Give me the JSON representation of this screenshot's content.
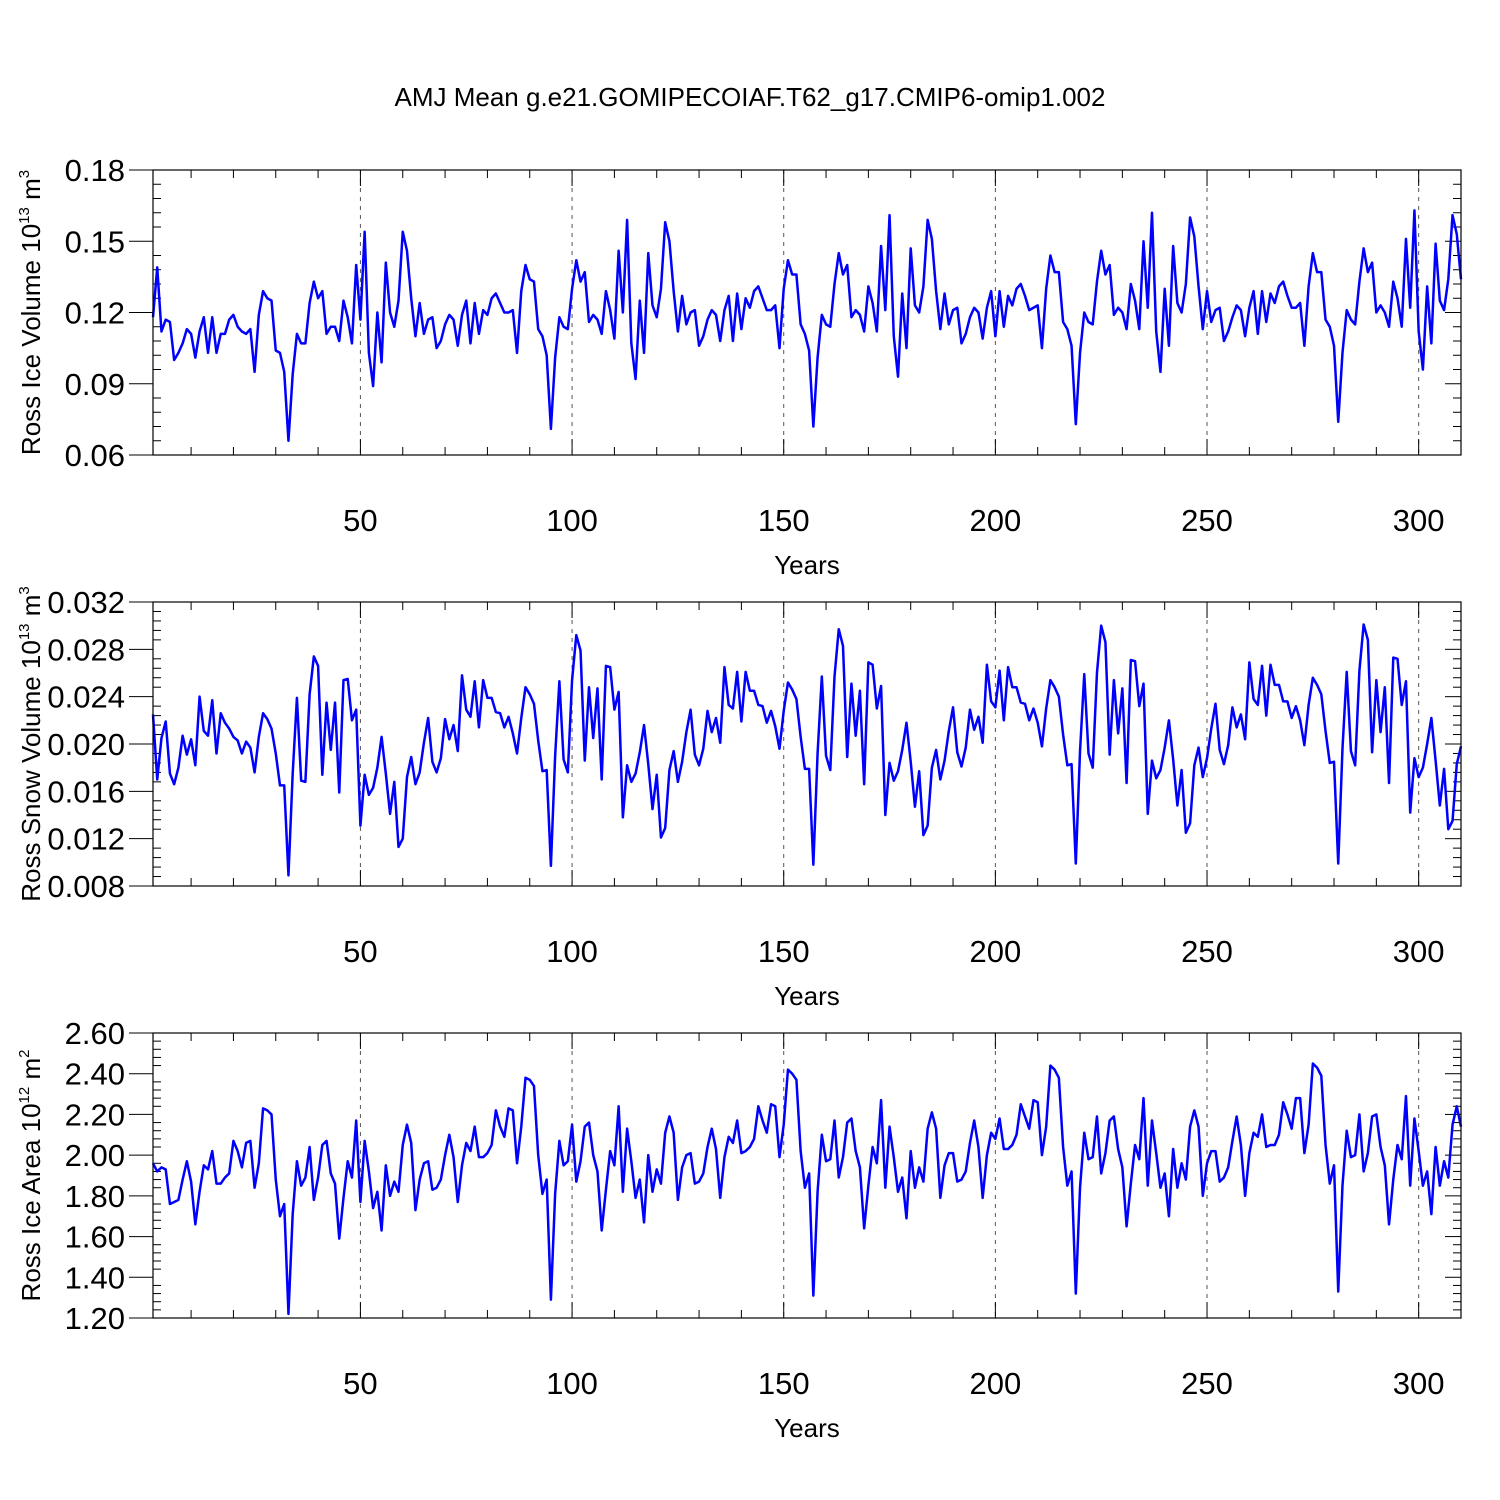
{
  "title": "AMJ Mean g.e21.GOMIPECOIAF.T62_g17.CMIP6-omip1.002",
  "colors": {
    "line": "#0000ff",
    "axis": "#000000",
    "grid": "#555555"
  },
  "chart_data": [
    {
      "type": "line",
      "name": "ross-ice-volume",
      "xlabel": "Years",
      "ylabel": {
        "main": "Ross Ice Volume 10",
        "exp": "13",
        "unit": " m",
        "unit_exp": "3"
      },
      "xlim": [
        1,
        310
      ],
      "ylim": [
        0.06,
        0.18
      ],
      "xticks": [
        50,
        100,
        150,
        200,
        250,
        300
      ],
      "xtick_labels": [
        "50",
        "100",
        "150",
        "200",
        "250",
        "300"
      ],
      "yticks": [
        0.06,
        0.09,
        0.12,
        0.15,
        0.18
      ],
      "ytick_labels": [
        "0.06",
        "0.09",
        "0.12",
        "0.15",
        "0.18"
      ],
      "grid": "vertical dashed at x ticks",
      "x_start": 1,
      "values": [
        0.118,
        0.139,
        0.112,
        0.117,
        0.116,
        0.1,
        0.103,
        0.107,
        0.113,
        0.111,
        0.101,
        0.112,
        0.118,
        0.103,
        0.118,
        0.103,
        0.111,
        0.111,
        0.117,
        0.119,
        0.114,
        0.112,
        0.111,
        0.113,
        0.095,
        0.119,
        0.129,
        0.126,
        0.125,
        0.104,
        0.103,
        0.095,
        0.066,
        0.094,
        0.111,
        0.107,
        0.107,
        0.124,
        0.133,
        0.126,
        0.129,
        0.111,
        0.114,
        0.114,
        0.108,
        0.125,
        0.118,
        0.107,
        0.14,
        0.117,
        0.154,
        0.103,
        0.089,
        0.12,
        0.099,
        0.141,
        0.12,
        0.114,
        0.125,
        0.154,
        0.146,
        0.126,
        0.11,
        0.124,
        0.111,
        0.117,
        0.118,
        0.105,
        0.108,
        0.115,
        0.119,
        0.117,
        0.106,
        0.119,
        0.125,
        0.107,
        0.124,
        0.111,
        0.121,
        0.119,
        0.126,
        0.128,
        0.124,
        0.12,
        0.12,
        0.121,
        0.103,
        0.129,
        0.14,
        0.134,
        0.133,
        0.113,
        0.11,
        0.102,
        0.071,
        0.101,
        0.118,
        0.114,
        0.113,
        0.13,
        0.142,
        0.133,
        0.137,
        0.116,
        0.119,
        0.117,
        0.111,
        0.129,
        0.121,
        0.109,
        0.146,
        0.12,
        0.159,
        0.107,
        0.092,
        0.125,
        0.103,
        0.145,
        0.123,
        0.118,
        0.13,
        0.158,
        0.15,
        0.129,
        0.112,
        0.127,
        0.115,
        0.12,
        0.121,
        0.106,
        0.11,
        0.117,
        0.121,
        0.119,
        0.108,
        0.121,
        0.127,
        0.108,
        0.128,
        0.113,
        0.126,
        0.122,
        0.129,
        0.131,
        0.126,
        0.121,
        0.121,
        0.123,
        0.105,
        0.13,
        0.142,
        0.136,
        0.136,
        0.115,
        0.111,
        0.104,
        0.072,
        0.101,
        0.119,
        0.115,
        0.114,
        0.132,
        0.145,
        0.136,
        0.14,
        0.118,
        0.121,
        0.119,
        0.112,
        0.131,
        0.124,
        0.112,
        0.148,
        0.121,
        0.161,
        0.11,
        0.093,
        0.128,
        0.105,
        0.147,
        0.123,
        0.12,
        0.131,
        0.159,
        0.151,
        0.129,
        0.113,
        0.128,
        0.115,
        0.121,
        0.122,
        0.107,
        0.111,
        0.118,
        0.122,
        0.12,
        0.109,
        0.122,
        0.129,
        0.11,
        0.129,
        0.114,
        0.127,
        0.123,
        0.13,
        0.132,
        0.127,
        0.121,
        0.122,
        0.123,
        0.105,
        0.13,
        0.144,
        0.137,
        0.137,
        0.116,
        0.113,
        0.106,
        0.073,
        0.103,
        0.12,
        0.116,
        0.115,
        0.133,
        0.146,
        0.136,
        0.14,
        0.119,
        0.122,
        0.12,
        0.113,
        0.132,
        0.125,
        0.113,
        0.15,
        0.122,
        0.162,
        0.112,
        0.095,
        0.13,
        0.106,
        0.148,
        0.124,
        0.12,
        0.132,
        0.16,
        0.152,
        0.131,
        0.113,
        0.129,
        0.116,
        0.121,
        0.122,
        0.108,
        0.112,
        0.118,
        0.123,
        0.121,
        0.11,
        0.122,
        0.129,
        0.111,
        0.129,
        0.116,
        0.128,
        0.124,
        0.131,
        0.133,
        0.127,
        0.122,
        0.122,
        0.124,
        0.106,
        0.131,
        0.145,
        0.137,
        0.137,
        0.117,
        0.114,
        0.106,
        0.074,
        0.103,
        0.121,
        0.117,
        0.115,
        0.133,
        0.147,
        0.137,
        0.141,
        0.12,
        0.123,
        0.12,
        0.114,
        0.133,
        0.126,
        0.114,
        0.151,
        0.122,
        0.163,
        0.112,
        0.096,
        0.131,
        0.107,
        0.149,
        0.125,
        0.121,
        0.134,
        0.161,
        0.153,
        0.134
      ]
    },
    {
      "type": "line",
      "name": "ross-snow-volume",
      "xlabel": "Years",
      "ylabel": {
        "main": "Ross Snow Volume 10",
        "exp": "13",
        "unit": " m",
        "unit_exp": "3"
      },
      "xlim": [
        1,
        310
      ],
      "ylim": [
        0.008,
        0.032
      ],
      "xticks": [
        50,
        100,
        150,
        200,
        250,
        300
      ],
      "xtick_labels": [
        "50",
        "100",
        "150",
        "200",
        "250",
        "300"
      ],
      "yticks": [
        0.008,
        0.012,
        0.016,
        0.02,
        0.024,
        0.028,
        0.032
      ],
      "ytick_labels": [
        "0.008",
        "0.012",
        "0.016",
        "0.020",
        "0.024",
        "0.028",
        "0.032"
      ],
      "grid": "vertical dashed at x ticks",
      "x_start": 1,
      "values": [
        0.0225,
        0.017,
        0.0205,
        0.0219,
        0.0175,
        0.0166,
        0.018,
        0.0207,
        0.0191,
        0.0204,
        0.0182,
        0.024,
        0.0211,
        0.0207,
        0.0237,
        0.0192,
        0.0226,
        0.0218,
        0.0213,
        0.0206,
        0.0203,
        0.0192,
        0.0202,
        0.0197,
        0.0176,
        0.0206,
        0.0226,
        0.0221,
        0.0213,
        0.0192,
        0.0165,
        0.0165,
        0.0089,
        0.0175,
        0.0239,
        0.0169,
        0.0168,
        0.0242,
        0.0274,
        0.0266,
        0.0174,
        0.0235,
        0.0195,
        0.0235,
        0.0159,
        0.0254,
        0.0255,
        0.022,
        0.0229,
        0.0131,
        0.0174,
        0.0157,
        0.0163,
        0.018,
        0.0206,
        0.0175,
        0.0141,
        0.0168,
        0.0113,
        0.012,
        0.0172,
        0.0189,
        0.0166,
        0.0176,
        0.0201,
        0.0222,
        0.0185,
        0.0176,
        0.0188,
        0.0221,
        0.0204,
        0.0216,
        0.0194,
        0.0258,
        0.0229,
        0.0223,
        0.0253,
        0.0214,
        0.0254,
        0.0239,
        0.0239,
        0.0227,
        0.0226,
        0.0214,
        0.0223,
        0.0209,
        0.0192,
        0.0222,
        0.0248,
        0.0242,
        0.0234,
        0.0203,
        0.0177,
        0.0178,
        0.0097,
        0.019,
        0.0253,
        0.0187,
        0.0176,
        0.0254,
        0.0292,
        0.0279,
        0.0186,
        0.0248,
        0.0205,
        0.0247,
        0.017,
        0.0266,
        0.0265,
        0.0229,
        0.0244,
        0.0138,
        0.0182,
        0.0168,
        0.0175,
        0.0193,
        0.0216,
        0.0183,
        0.0145,
        0.0174,
        0.0121,
        0.0129,
        0.0178,
        0.0194,
        0.0168,
        0.0185,
        0.021,
        0.0229,
        0.0191,
        0.0182,
        0.0196,
        0.0228,
        0.021,
        0.0222,
        0.0201,
        0.0265,
        0.0233,
        0.023,
        0.0261,
        0.0219,
        0.0261,
        0.0245,
        0.0245,
        0.0233,
        0.0232,
        0.0218,
        0.0228,
        0.0215,
        0.0196,
        0.0228,
        0.0252,
        0.0246,
        0.0238,
        0.0206,
        0.0179,
        0.0179,
        0.0098,
        0.0192,
        0.0257,
        0.019,
        0.0178,
        0.0257,
        0.0297,
        0.0283,
        0.0189,
        0.0251,
        0.0207,
        0.0245,
        0.0166,
        0.0269,
        0.0267,
        0.023,
        0.0249,
        0.014,
        0.0184,
        0.0169,
        0.0177,
        0.0195,
        0.0218,
        0.0185,
        0.0147,
        0.0177,
        0.0123,
        0.0131,
        0.018,
        0.0195,
        0.017,
        0.0186,
        0.0211,
        0.0231,
        0.0193,
        0.0181,
        0.0197,
        0.0229,
        0.0212,
        0.0223,
        0.0201,
        0.0267,
        0.0236,
        0.0231,
        0.0262,
        0.022,
        0.0265,
        0.0248,
        0.0248,
        0.0235,
        0.0234,
        0.022,
        0.023,
        0.0218,
        0.0198,
        0.023,
        0.0254,
        0.0248,
        0.024,
        0.0208,
        0.0182,
        0.0183,
        0.0099,
        0.0194,
        0.0259,
        0.0192,
        0.018,
        0.026,
        0.03,
        0.0286,
        0.0191,
        0.0254,
        0.0209,
        0.0247,
        0.0167,
        0.0271,
        0.027,
        0.0232,
        0.0251,
        0.0141,
        0.0186,
        0.0171,
        0.0178,
        0.0197,
        0.022,
        0.0187,
        0.0148,
        0.0178,
        0.0125,
        0.0133,
        0.0182,
        0.0197,
        0.0172,
        0.0188,
        0.0213,
        0.0234,
        0.0195,
        0.0183,
        0.0199,
        0.0231,
        0.0214,
        0.0225,
        0.0204,
        0.0269,
        0.0238,
        0.0233,
        0.0266,
        0.0224,
        0.0267,
        0.025,
        0.025,
        0.0236,
        0.0236,
        0.0222,
        0.0232,
        0.022,
        0.0199,
        0.0233,
        0.0256,
        0.025,
        0.0242,
        0.0211,
        0.0184,
        0.0185,
        0.0099,
        0.0196,
        0.0261,
        0.0194,
        0.0182,
        0.0262,
        0.0301,
        0.0288,
        0.0193,
        0.0254,
        0.021,
        0.0248,
        0.0167,
        0.0273,
        0.0272,
        0.0233,
        0.0253,
        0.0142,
        0.0188,
        0.0172,
        0.018,
        0.02,
        0.0222,
        0.0186,
        0.0148,
        0.0179,
        0.0128,
        0.0135,
        0.0183,
        0.0198
      ]
    },
    {
      "type": "line",
      "name": "ross-ice-area",
      "xlabel": "Years",
      "ylabel": {
        "main": "Ross Ice Area 10",
        "exp": "12",
        "unit": " m",
        "unit_exp": "2"
      },
      "xlim": [
        1,
        310
      ],
      "ylim": [
        1.2,
        2.6
      ],
      "xticks": [
        50,
        100,
        150,
        200,
        250,
        300
      ],
      "xtick_labels": [
        "50",
        "100",
        "150",
        "200",
        "250",
        "300"
      ],
      "yticks": [
        1.2,
        1.4,
        1.6,
        1.8,
        2.0,
        2.2,
        2.4,
        2.6
      ],
      "ytick_labels": [
        "1.20",
        "1.40",
        "1.60",
        "1.80",
        "2.00",
        "2.20",
        "2.40",
        "2.60"
      ],
      "grid": "vertical dashed at x ticks",
      "x_start": 1,
      "values": [
        1.96,
        1.92,
        1.94,
        1.93,
        1.76,
        1.77,
        1.78,
        1.88,
        1.97,
        1.87,
        1.66,
        1.82,
        1.95,
        1.93,
        2.02,
        1.86,
        1.86,
        1.89,
        1.91,
        2.07,
        2.02,
        1.94,
        2.06,
        2.07,
        1.84,
        1.96,
        2.23,
        2.22,
        2.2,
        1.88,
        1.7,
        1.76,
        1.22,
        1.71,
        1.97,
        1.85,
        1.89,
        2.04,
        1.78,
        1.89,
        2.05,
        2.07,
        1.91,
        1.86,
        1.59,
        1.79,
        1.97,
        1.89,
        2.17,
        1.77,
        2.07,
        1.92,
        1.74,
        1.82,
        1.63,
        1.95,
        1.8,
        1.87,
        1.82,
        2.05,
        2.15,
        2.06,
        1.73,
        1.88,
        1.96,
        1.97,
        1.83,
        1.84,
        1.88,
        2.0,
        2.1,
        1.99,
        1.77,
        1.95,
        2.06,
        2.02,
        2.14,
        1.99,
        1.99,
        2.01,
        2.05,
        2.22,
        2.14,
        2.09,
        2.23,
        2.22,
        1.96,
        2.14,
        2.38,
        2.37,
        2.34,
        2.0,
        1.81,
        1.88,
        1.29,
        1.81,
        2.07,
        1.95,
        1.97,
        2.15,
        1.87,
        1.97,
        2.14,
        2.16,
        2.0,
        1.92,
        1.63,
        1.83,
        2.02,
        1.95,
        2.24,
        1.82,
        2.13,
        1.97,
        1.79,
        1.88,
        1.67,
        2.0,
        1.82,
        1.93,
        1.86,
        2.11,
        2.19,
        2.11,
        1.78,
        1.94,
        2.0,
        2.01,
        1.86,
        1.87,
        1.91,
        2.04,
        2.13,
        2.03,
        1.79,
        1.99,
        2.09,
        2.06,
        2.17,
        2.01,
        2.02,
        2.04,
        2.08,
        2.24,
        2.17,
        2.11,
        2.25,
        2.24,
        1.99,
        2.15,
        2.42,
        2.4,
        2.37,
        2.02,
        1.84,
        1.91,
        1.31,
        1.82,
        2.1,
        1.97,
        1.98,
        2.17,
        1.89,
        1.99,
        2.16,
        2.18,
        2.02,
        1.94,
        1.64,
        1.85,
        2.04,
        1.96,
        2.27,
        1.84,
        2.14,
        1.99,
        1.82,
        1.89,
        1.69,
        2.02,
        1.84,
        1.94,
        1.87,
        2.13,
        2.21,
        2.13,
        1.79,
        1.95,
        2.01,
        2.01,
        1.87,
        1.88,
        1.92,
        2.06,
        2.17,
        2.04,
        1.79,
        2.0,
        2.11,
        2.08,
        2.18,
        2.03,
        2.03,
        2.05,
        2.1,
        2.25,
        2.19,
        2.13,
        2.27,
        2.26,
        2.0,
        2.14,
        2.44,
        2.42,
        2.38,
        2.04,
        1.85,
        1.92,
        1.32,
        1.84,
        2.11,
        1.98,
        1.99,
        2.19,
        1.91,
        2.01,
        2.17,
        2.19,
        2.03,
        1.94,
        1.65,
        1.86,
        2.05,
        1.98,
        2.28,
        1.85,
        2.17,
        2.01,
        1.84,
        1.91,
        1.7,
        2.03,
        1.84,
        1.96,
        1.88,
        2.14,
        2.22,
        2.14,
        1.8,
        1.96,
        2.02,
        2.02,
        1.87,
        1.89,
        1.94,
        2.07,
        2.19,
        2.05,
        1.8,
        2.01,
        2.11,
        2.09,
        2.2,
        2.04,
        2.05,
        2.05,
        2.1,
        2.26,
        2.2,
        2.13,
        2.28,
        2.28,
        2.01,
        2.15,
        2.45,
        2.43,
        2.39,
        2.05,
        1.86,
        1.95,
        1.33,
        1.85,
        2.12,
        1.99,
        2.0,
        2.2,
        1.92,
        2.01,
        2.19,
        2.2,
        2.04,
        1.95,
        1.66,
        1.88,
        2.05,
        1.98,
        2.29,
        1.85,
        2.18,
        2.02,
        1.85,
        1.92,
        1.71,
        2.04,
        1.85,
        1.97,
        1.89,
        2.15,
        2.24,
        2.14
      ]
    }
  ]
}
